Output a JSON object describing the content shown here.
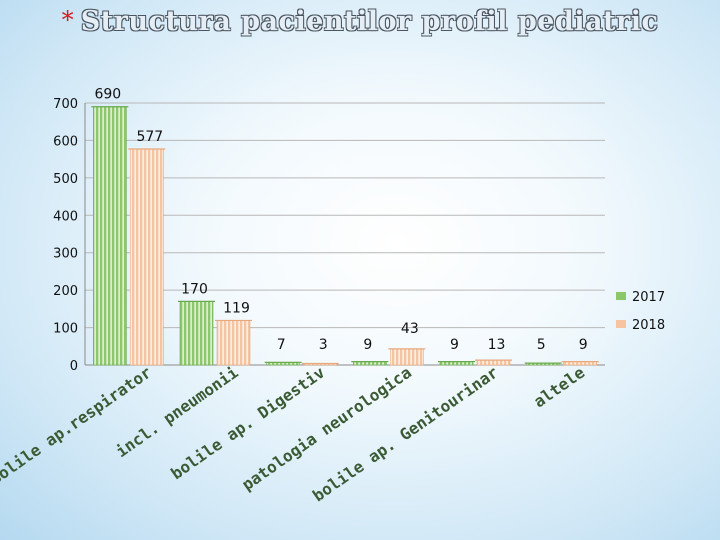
{
  "title": {
    "star": "*",
    "text": "Structura pacientilor profil  pediatric"
  },
  "colors": {
    "s2017": "#8cc86a",
    "s2018": "#f6c4a0",
    "axis": "#8a8a8a",
    "grid": "#b8b8b8"
  },
  "chart_data": {
    "type": "bar",
    "title": "Structura pacientilor profil  pediatric",
    "categories": [
      "Bolile ap.respirator",
      "incl. pneumonii",
      "bolile ap. Digestiv",
      "patologia neurologica",
      "bolile ap. Genitourinar",
      "altele"
    ],
    "series": [
      {
        "name": "2017",
        "values": [
          690,
          170,
          7,
          9,
          9,
          5
        ]
      },
      {
        "name": "2018",
        "values": [
          577,
          119,
          3,
          43,
          13,
          9
        ]
      }
    ],
    "y_ticks": [
      "0",
      "100",
      "200",
      "300",
      "400",
      "500",
      "600",
      "700"
    ],
    "ylim": [
      0,
      700
    ],
    "grid": true,
    "legend_position": "right"
  }
}
